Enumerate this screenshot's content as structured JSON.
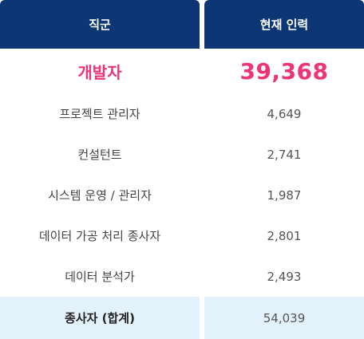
{
  "header": {
    "col_job": "직군",
    "col_count": "현재 인력"
  },
  "highlight": {
    "job": "개발자",
    "count": "39,368"
  },
  "rows": [
    {
      "job": "프로젝트 관리자",
      "count": "4,649"
    },
    {
      "job": "컨설턴트",
      "count": "2,741"
    },
    {
      "job": "시스템 운영 / 관리자",
      "count": "1,987"
    },
    {
      "job": "데이터 가공 처리 종사자",
      "count": "2,801"
    },
    {
      "job": "데이터 분석가",
      "count": "2,493"
    }
  ],
  "footer": {
    "job": "종사자 (합계)",
    "count": "54,039"
  },
  "colors": {
    "header_bg": "#0c3774",
    "highlight_text": "#ee3377",
    "footer_bg": "#e2f1fa"
  }
}
